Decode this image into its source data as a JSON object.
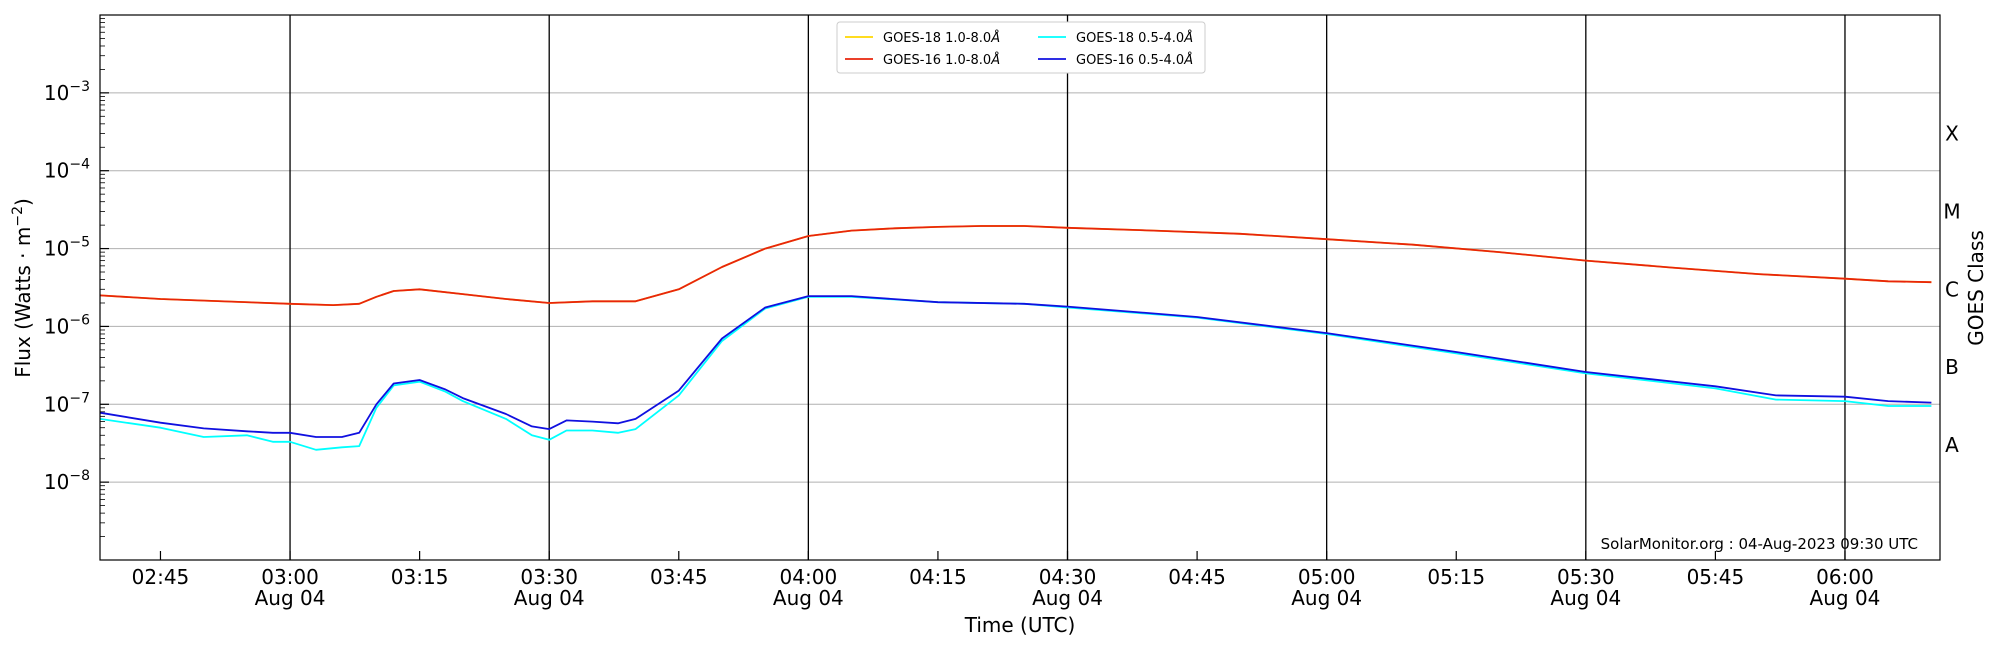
{
  "chart_data": {
    "type": "line",
    "title": "",
    "xlabel": "Time (UTC)",
    "ylabel": "Flux (Watts · m",
    "ylabel_sup": "−2",
    "ylabel_close": ")",
    "right_axis_label": "GOES Class",
    "yscale": "log",
    "ylim": [
      1e-09,
      0.01
    ],
    "xlim": [
      "02:38",
      "06:11"
    ],
    "grid": "horizontal",
    "legend_position": "top-center",
    "date_label": "Aug 04",
    "annotation": "SolarMonitor.org : 04-Aug-2023 09:30 UTC",
    "yticks": [
      {
        "exp": -8,
        "base": "10",
        "power": "−8"
      },
      {
        "exp": -7,
        "base": "10",
        "power": "−7"
      },
      {
        "exp": -6,
        "base": "10",
        "power": "−6"
      },
      {
        "exp": -5,
        "base": "10",
        "power": "−5"
      },
      {
        "exp": -4,
        "base": "10",
        "power": "−4"
      },
      {
        "exp": -3,
        "base": "10",
        "power": "−3"
      }
    ],
    "xticks": [
      {
        "time": "02:45",
        "label": "02:45",
        "date": false
      },
      {
        "time": "03:00",
        "label": "03:00",
        "date": true
      },
      {
        "time": "03:15",
        "label": "03:15",
        "date": false
      },
      {
        "time": "03:30",
        "label": "03:30",
        "date": true
      },
      {
        "time": "03:45",
        "label": "03:45",
        "date": false
      },
      {
        "time": "04:00",
        "label": "04:00",
        "date": true
      },
      {
        "time": "04:15",
        "label": "04:15",
        "date": false
      },
      {
        "time": "04:30",
        "label": "04:30",
        "date": true
      },
      {
        "time": "04:45",
        "label": "04:45",
        "date": false
      },
      {
        "time": "05:00",
        "label": "05:00",
        "date": true
      },
      {
        "time": "05:15",
        "label": "05:15",
        "date": false
      },
      {
        "time": "05:30",
        "label": "05:30",
        "date": true
      },
      {
        "time": "05:45",
        "label": "05:45",
        "date": false
      },
      {
        "time": "06:00",
        "label": "06:00",
        "date": true
      }
    ],
    "goes_classes": [
      {
        "label": "A",
        "value": 3e-08
      },
      {
        "label": "B",
        "value": 3e-07
      },
      {
        "label": "C",
        "value": 3e-06
      },
      {
        "label": "M",
        "value": 3e-05
      },
      {
        "label": "X",
        "value": 0.0003
      }
    ],
    "series": [
      {
        "name": "GOES-18 1.0-8.0",
        "unit": "Å",
        "color": "#ffd700",
        "x": [
          "02:38",
          "02:45",
          "03:00",
          "03:05",
          "03:08",
          "03:10",
          "03:12",
          "03:15",
          "03:20",
          "03:25",
          "03:30",
          "03:35",
          "03:40",
          "03:45",
          "03:50",
          "03:55",
          "04:00",
          "04:05",
          "04:10",
          "04:15",
          "04:20",
          "04:25",
          "04:30",
          "04:40",
          "04:50",
          "05:00",
          "05:10",
          "05:20",
          "05:30",
          "05:40",
          "05:50",
          "06:00",
          "06:05",
          "06:10"
        ],
        "y": [
          2.5e-06,
          2.25e-06,
          1.95e-06,
          1.88e-06,
          1.95e-06,
          2.4e-06,
          2.85e-06,
          3e-06,
          2.6e-06,
          2.25e-06,
          2e-06,
          2.1e-06,
          2.1e-06,
          3e-06,
          5.8e-06,
          1e-05,
          1.45e-05,
          1.7e-05,
          1.82e-05,
          1.9e-05,
          1.95e-05,
          1.95e-05,
          1.85e-05,
          1.7e-05,
          1.55e-05,
          1.32e-05,
          1.12e-05,
          9e-06,
          7e-06,
          5.7e-06,
          4.7e-06,
          4.1e-06,
          3.8e-06,
          3.7e-06
        ]
      },
      {
        "name": "GOES-16 1.0-8.0",
        "unit": "Å",
        "color": "#e8250b",
        "x": [
          "02:38",
          "02:45",
          "03:00",
          "03:05",
          "03:08",
          "03:10",
          "03:12",
          "03:15",
          "03:20",
          "03:25",
          "03:30",
          "03:35",
          "03:40",
          "03:45",
          "03:50",
          "03:55",
          "04:00",
          "04:05",
          "04:10",
          "04:15",
          "04:20",
          "04:25",
          "04:30",
          "04:40",
          "04:50",
          "05:00",
          "05:10",
          "05:20",
          "05:30",
          "05:40",
          "05:50",
          "06:00",
          "06:05",
          "06:10"
        ],
        "y": [
          2.5e-06,
          2.25e-06,
          1.95e-06,
          1.88e-06,
          1.95e-06,
          2.4e-06,
          2.85e-06,
          3e-06,
          2.6e-06,
          2.25e-06,
          2e-06,
          2.1e-06,
          2.1e-06,
          3e-06,
          5.8e-06,
          1e-05,
          1.45e-05,
          1.7e-05,
          1.82e-05,
          1.9e-05,
          1.95e-05,
          1.95e-05,
          1.85e-05,
          1.7e-05,
          1.55e-05,
          1.32e-05,
          1.12e-05,
          9e-06,
          7e-06,
          5.7e-06,
          4.7e-06,
          4.1e-06,
          3.8e-06,
          3.7e-06
        ]
      },
      {
        "name": "GOES-18 0.5-4.0",
        "unit": "Å",
        "color": "#00ffff",
        "x": [
          "02:38",
          "02:45",
          "02:50",
          "02:55",
          "02:58",
          "03:00",
          "03:03",
          "03:06",
          "03:08",
          "03:10",
          "03:12",
          "03:15",
          "03:18",
          "03:20",
          "03:25",
          "03:28",
          "03:30",
          "03:32",
          "03:35",
          "03:38",
          "03:40",
          "03:45",
          "03:50",
          "03:55",
          "04:00",
          "04:05",
          "04:15",
          "04:25",
          "04:30",
          "04:45",
          "05:00",
          "05:15",
          "05:30",
          "05:45",
          "05:52",
          "06:00",
          "06:05",
          "06:10"
        ],
        "y": [
          6.5e-08,
          5e-08,
          3.8e-08,
          4e-08,
          3.3e-08,
          3.3e-08,
          2.6e-08,
          2.8e-08,
          2.9e-08,
          9e-08,
          1.75e-07,
          1.95e-07,
          1.45e-07,
          1.1e-07,
          6.5e-08,
          4e-08,
          3.5e-08,
          4.6e-08,
          4.6e-08,
          4.3e-08,
          4.8e-08,
          1.3e-07,
          6.5e-07,
          1.7e-06,
          2.4e-06,
          2.4e-06,
          2.05e-06,
          1.95e-06,
          1.75e-06,
          1.3e-06,
          8e-07,
          4.5e-07,
          2.5e-07,
          1.6e-07,
          1.15e-07,
          1.1e-07,
          9.5e-08,
          9.5e-08
        ]
      },
      {
        "name": "GOES-16 0.5-4.0",
        "unit": "Å",
        "color": "#1010e0",
        "x": [
          "02:38",
          "02:45",
          "02:50",
          "02:55",
          "02:58",
          "03:00",
          "03:03",
          "03:06",
          "03:08",
          "03:10",
          "03:12",
          "03:15",
          "03:18",
          "03:20",
          "03:25",
          "03:28",
          "03:30",
          "03:32",
          "03:35",
          "03:38",
          "03:40",
          "03:45",
          "03:50",
          "03:55",
          "04:00",
          "04:05",
          "04:15",
          "04:25",
          "04:30",
          "04:45",
          "05:00",
          "05:15",
          "05:30",
          "05:45",
          "05:52",
          "06:00",
          "06:05",
          "06:10"
        ],
        "y": [
          7.8e-08,
          5.8e-08,
          4.9e-08,
          4.5e-08,
          4.3e-08,
          4.3e-08,
          3.8e-08,
          3.8e-08,
          4.3e-08,
          1e-07,
          1.85e-07,
          2.05e-07,
          1.55e-07,
          1.2e-07,
          7.5e-08,
          5.2e-08,
          4.8e-08,
          6.2e-08,
          6e-08,
          5.7e-08,
          6.5e-08,
          1.5e-07,
          7e-07,
          1.75e-06,
          2.45e-06,
          2.45e-06,
          2.05e-06,
          1.95e-06,
          1.8e-06,
          1.32e-06,
          8.2e-07,
          4.7e-07,
          2.6e-07,
          1.7e-07,
          1.3e-07,
          1.25e-07,
          1.1e-07,
          1.05e-07
        ]
      }
    ]
  }
}
